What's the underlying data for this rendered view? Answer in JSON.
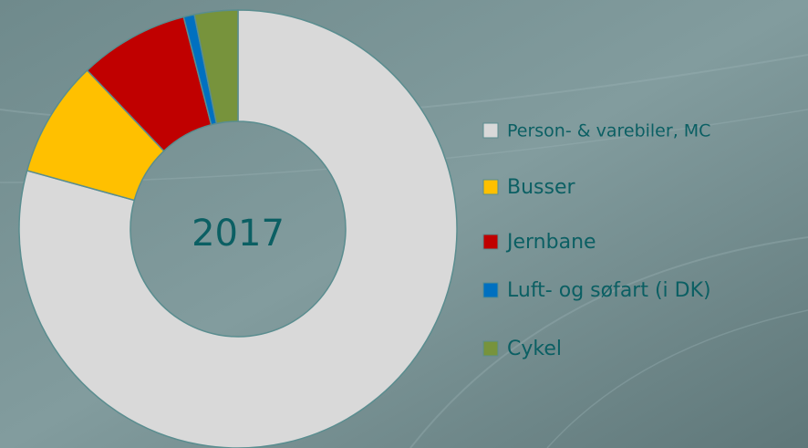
{
  "chart_data": {
    "type": "donut",
    "center_label": "2017",
    "categories": [
      "Person- & varebiler, MC",
      "Busser",
      "Jernbane",
      "Luft- og søfart (i DK)",
      "Cykel"
    ],
    "values": [
      79.3,
      8.6,
      8.1,
      0.8,
      3.2
    ],
    "colors": [
      "#d9d9d9",
      "#ffc000",
      "#c00000",
      "#0070c0",
      "#77933c"
    ],
    "legend": "right"
  }
}
